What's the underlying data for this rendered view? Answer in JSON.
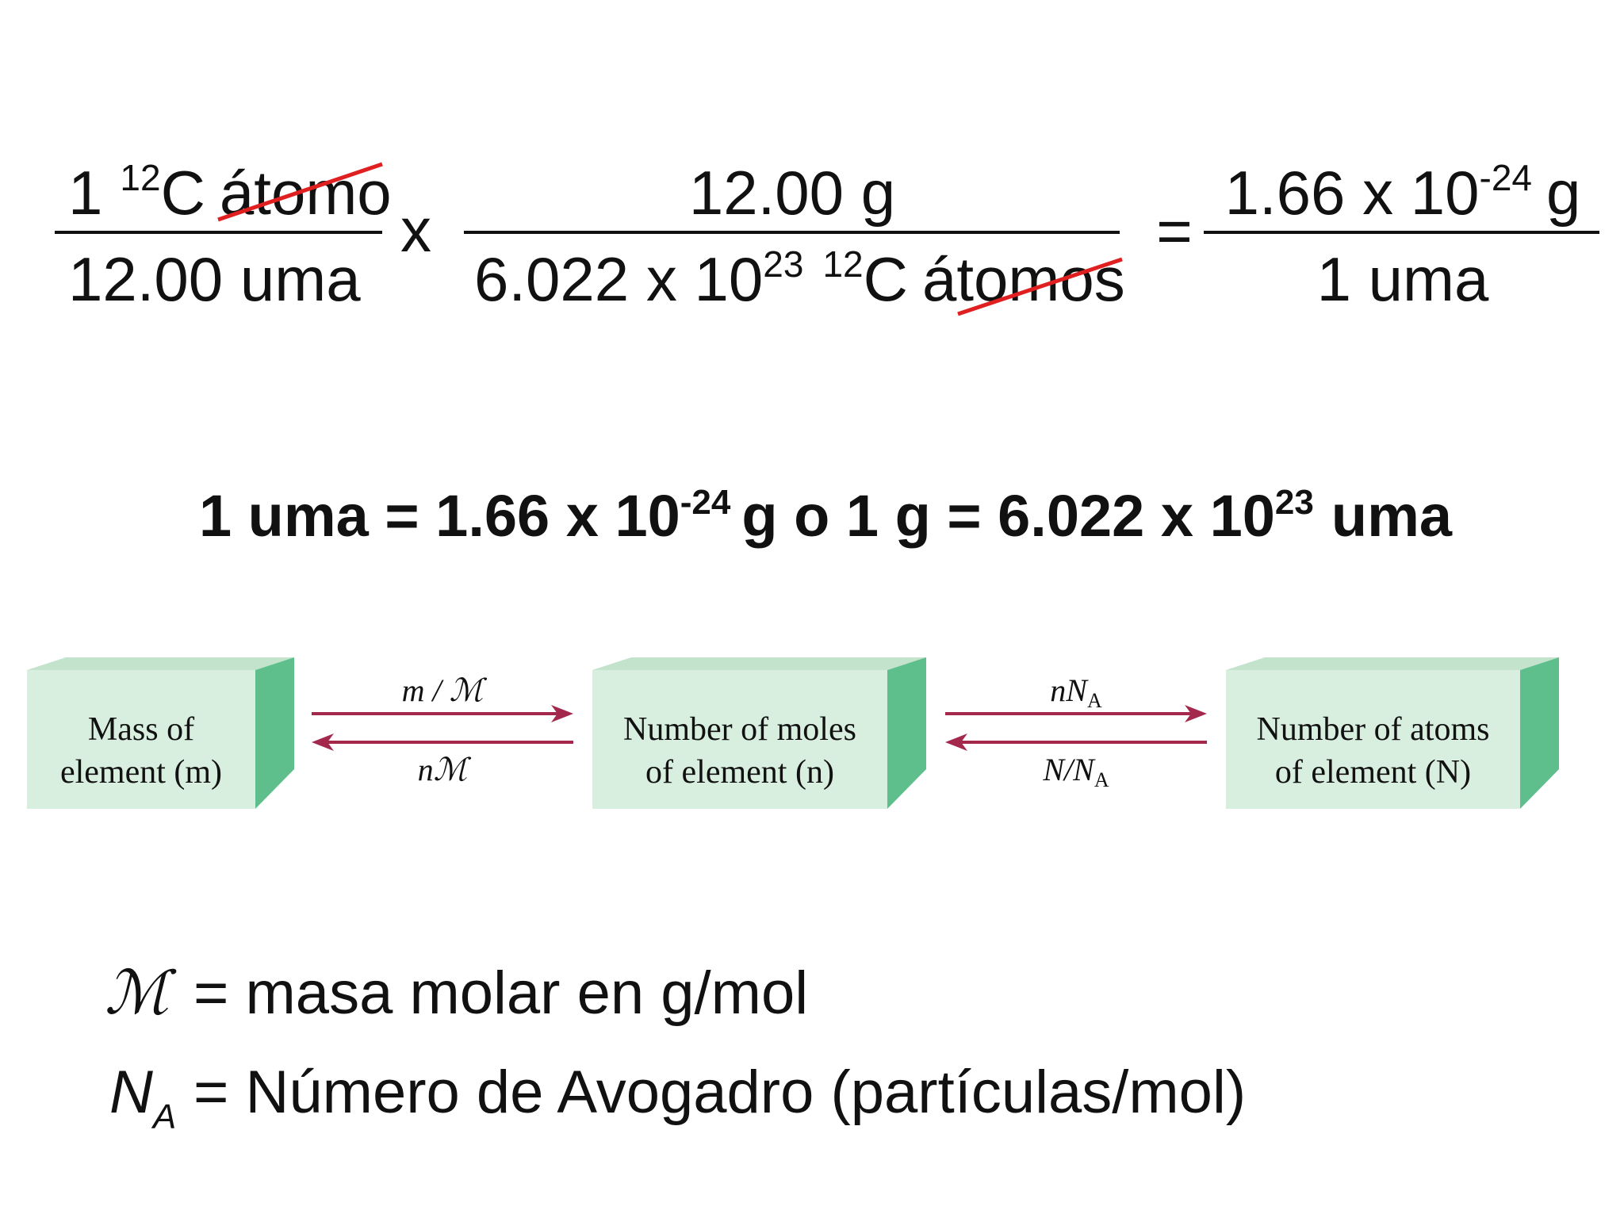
{
  "equation": {
    "term1": {
      "numerator": {
        "coefficient": "1",
        "mass_number": "12",
        "element": "C",
        "unit": "átomo"
      },
      "denominator": "12.00 uma"
    },
    "times": "x",
    "term2": {
      "numerator": "12.00 g",
      "denominator": {
        "mantissa": "6.022 x 10",
        "exponent": "23",
        "mass_number": "12",
        "element": "C",
        "unit": "átomos"
      }
    },
    "equals": "=",
    "result": {
      "numerator": {
        "mantissa": "1.66 x 10",
        "exponent": "-24",
        "unit": "g"
      },
      "denominator": "1 uma"
    }
  },
  "statement": {
    "part1": "1 uma = 1.66 x 10",
    "exponent1": "-24",
    "part2": "g  o 1 g = 6.022 x 10",
    "exponent2": "23",
    "part3": "uma"
  },
  "diagram": {
    "boxes": [
      [
        "Mass of",
        "element (m)"
      ],
      [
        "Number of moles",
        "of element (n)"
      ],
      [
        "Number of atoms",
        "of element (N)"
      ]
    ],
    "arrows": [
      {
        "forward": "m / ℳ",
        "backward": "nℳ"
      },
      {
        "forward": {
          "main": "nN",
          "sub": "A"
        },
        "backward": {
          "main": "N/N",
          "sub": "A"
        }
      }
    ]
  },
  "legend": [
    {
      "symbol": "ℳ",
      "text": "= masa molar en g/mol"
    },
    {
      "symbol": "N",
      "sub": "A",
      "text": "= Número de Avogadro (partículas/mol)"
    }
  ]
}
